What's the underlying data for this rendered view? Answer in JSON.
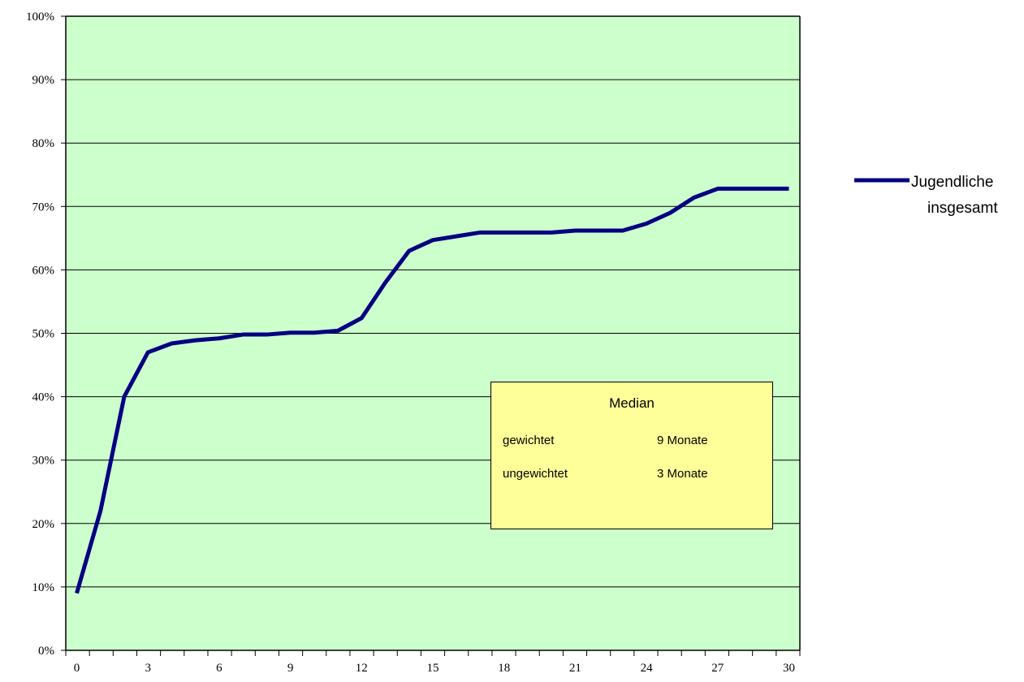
{
  "chart_data": {
    "type": "line",
    "x": [
      0,
      1,
      2,
      3,
      4,
      5,
      6,
      7,
      8,
      9,
      10,
      11,
      12,
      13,
      14,
      15,
      16,
      17,
      18,
      19,
      20,
      21,
      22,
      23,
      24,
      25,
      26,
      27,
      28,
      29,
      30
    ],
    "series": [
      {
        "name": "Jugendliche insgesamt",
        "values": [
          9,
          22,
          40,
          47,
          48.4,
          48.9,
          49.2,
          49.8,
          49.8,
          50.1,
          50.1,
          50.4,
          52.4,
          58,
          63,
          64.7,
          65.3,
          65.9,
          65.9,
          65.9,
          65.9,
          66.2,
          66.2,
          66.2,
          67.3,
          69,
          71.4,
          72.8,
          72.8,
          72.8,
          72.8
        ]
      }
    ],
    "xlim": [
      0,
      30
    ],
    "xticks": [
      "0",
      "3",
      "6",
      "9",
      "12",
      "15",
      "18",
      "21",
      "24",
      "27",
      "30"
    ],
    "ylim": [
      0,
      100
    ],
    "yticks": [
      "0%",
      "10%",
      "20%",
      "30%",
      "40%",
      "50%",
      "60%",
      "70%",
      "80%",
      "90%",
      "100%"
    ],
    "grid": true,
    "legend_position": "right",
    "colors": {
      "plot_background": "#ccffcc",
      "line": "#000080",
      "annotation_background": "#ffff99"
    }
  },
  "legend": {
    "line1": "Jugendliche",
    "line2": "insgesamt"
  },
  "annotation": {
    "title": "Median",
    "rows": [
      {
        "label": "gewichtet",
        "value": "9 Monate"
      },
      {
        "label": "ungewichtet",
        "value": "3 Monate"
      }
    ]
  }
}
